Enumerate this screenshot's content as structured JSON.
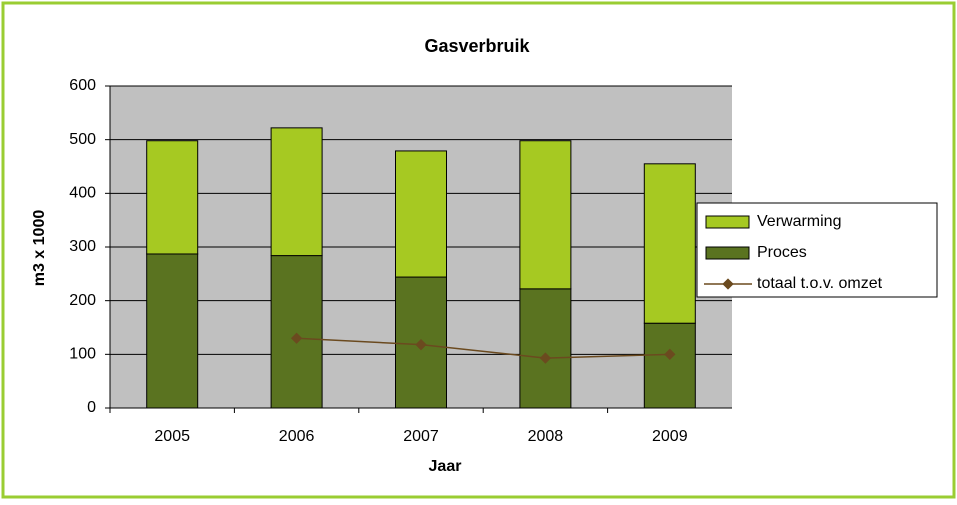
{
  "chart_data": {
    "type": "bar",
    "stacked": true,
    "title": "Gasverbruik",
    "x_label": "Jaar",
    "y_label": "m3 x 1000",
    "categories": [
      "2005",
      "2006",
      "2007",
      "2008",
      "2009"
    ],
    "series": [
      {
        "name": "Verwarming",
        "color": "#a6c922",
        "values": [
          211,
          238,
          235,
          276,
          297
        ]
      },
      {
        "name": "Proces",
        "color": "#5a7320",
        "values": [
          287,
          284,
          244,
          222,
          158
        ]
      },
      {
        "name": "totaal t.o.v. omzet",
        "type": "line",
        "color": "#6b4a1f",
        "values": [
          null,
          130,
          118,
          93,
          100
        ]
      }
    ],
    "stack_order": [
      1,
      0
    ],
    "ylim": [
      0,
      600
    ],
    "yticks": [
      0,
      100,
      200,
      300,
      400,
      500,
      600
    ],
    "grid": true,
    "legend": "right"
  }
}
